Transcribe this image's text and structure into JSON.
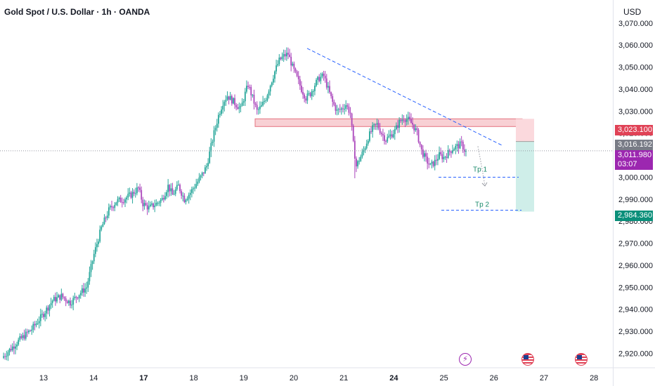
{
  "header": {
    "title": "Gold Spot / U.S. Dollar · 1h · OANDA"
  },
  "currency_label": "USD",
  "chart_data": {
    "type": "candlestick",
    "ylim": [
      2916,
      3076
    ],
    "y_ticks": [
      2920,
      2930,
      2940,
      2950,
      2960,
      2970,
      2980,
      2990,
      3000,
      3010,
      3020,
      3030,
      3040,
      3050,
      3060,
      3070
    ],
    "y_tick_labels": [
      "2,920.000",
      "2,930.000",
      "2,940.000",
      "2,950.000",
      "2,960.000",
      "2,970.000",
      "2,980.000",
      "2,990.000",
      "3,000.000",
      "3,010.000",
      "3,020.000",
      "3,030.000",
      "3,040.000",
      "3,050.000",
      "3,060.000",
      "3,070.000"
    ],
    "x_ticks": [
      {
        "label": "13",
        "bold": false
      },
      {
        "label": "14",
        "bold": false
      },
      {
        "label": "17",
        "bold": true
      },
      {
        "label": "18",
        "bold": false
      },
      {
        "label": "19",
        "bold": false
      },
      {
        "label": "20",
        "bold": false
      },
      {
        "label": "21",
        "bold": false
      },
      {
        "label": "24",
        "bold": true
      },
      {
        "label": "25",
        "bold": false
      },
      {
        "label": "26",
        "bold": false
      },
      {
        "label": "27",
        "bold": false
      },
      {
        "label": "28",
        "bold": false
      }
    ],
    "price_path": [
      [
        0,
        2918
      ],
      [
        10,
        2925
      ],
      [
        20,
        2931
      ],
      [
        28,
        2938
      ],
      [
        34,
        2944
      ],
      [
        40,
        2946
      ],
      [
        46,
        2943
      ],
      [
        52,
        2947
      ],
      [
        57,
        2950
      ],
      [
        62,
        2965
      ],
      [
        67,
        2977
      ],
      [
        72,
        2985
      ],
      [
        77,
        2989
      ],
      [
        82,
        2990
      ],
      [
        87,
        2992
      ],
      [
        92,
        2995
      ],
      [
        95,
        2988
      ],
      [
        99,
        2986
      ],
      [
        104,
        2988
      ],
      [
        108,
        2990
      ],
      [
        112,
        2996
      ],
      [
        115,
        2992
      ],
      [
        119,
        2996
      ],
      [
        123,
        2990
      ],
      [
        127,
        2993
      ],
      [
        131,
        2997
      ],
      [
        134,
        3000
      ],
      [
        138,
        3005
      ],
      [
        141,
        3014
      ],
      [
        143,
        3020
      ],
      [
        146,
        3028
      ],
      [
        149,
        3034
      ],
      [
        152,
        3037
      ],
      [
        155,
        3035
      ],
      [
        158,
        3033
      ],
      [
        161,
        3031
      ],
      [
        164,
        3038
      ],
      [
        166,
        3042
      ],
      [
        169,
        3036
      ],
      [
        172,
        3030
      ],
      [
        175,
        3032
      ],
      [
        178,
        3036
      ],
      [
        181,
        3042
      ],
      [
        184,
        3048
      ],
      [
        187,
        3053
      ],
      [
        190,
        3055
      ],
      [
        193,
        3056
      ],
      [
        196,
        3050
      ],
      [
        199,
        3045
      ],
      [
        202,
        3040
      ],
      [
        205,
        3036
      ],
      [
        208,
        3038
      ],
      [
        211,
        3042
      ],
      [
        214,
        3045
      ],
      [
        217,
        3046
      ],
      [
        220,
        3040
      ],
      [
        223,
        3034
      ],
      [
        226,
        3030
      ],
      [
        229,
        3031
      ],
      [
        232,
        3033
      ],
      [
        235,
        3029
      ],
      [
        237,
        3015
      ],
      [
        239,
        3005
      ],
      [
        241,
        3008
      ],
      [
        244,
        3012
      ],
      [
        247,
        3018
      ],
      [
        250,
        3022
      ],
      [
        253,
        3024
      ],
      [
        256,
        3020
      ],
      [
        259,
        3017
      ],
      [
        262,
        3019
      ],
      [
        265,
        3021
      ],
      [
        268,
        3025
      ],
      [
        271,
        3027
      ],
      [
        274,
        3026
      ],
      [
        277,
        3024
      ],
      [
        280,
        3020
      ],
      [
        283,
        3012
      ],
      [
        286,
        3008
      ],
      [
        289,
        3005
      ],
      [
        292,
        3007
      ],
      [
        295,
        3010
      ],
      [
        298,
        3009
      ],
      [
        301,
        3011
      ],
      [
        304,
        3013
      ],
      [
        307,
        3014
      ],
      [
        310,
        3015
      ],
      [
        313,
        3011
      ]
    ],
    "current_price": 3011.98,
    "current_price_label": "3,011.980",
    "countdown": "03:07",
    "price_tags": {
      "stop": "3,023.100",
      "entry": "3,016.192",
      "current": "3,011.980",
      "target": "2,984.360"
    },
    "resistance_zone": {
      "low": 3023,
      "high": 3026.5
    },
    "downtrend_line": {
      "from": 3058.5,
      "to": 3014.5
    },
    "short_position": {
      "stop": 3023.1,
      "entry": 3016.192,
      "target": 2984.36
    },
    "annotations": [
      "Tp 1",
      "Tp 2"
    ],
    "tp_levels": [
      3000,
      2985
    ],
    "colors": {
      "up": "#26a69a",
      "down": "#ab47bc",
      "trend": "#2962ff",
      "zone_fill": "#f8d0d4",
      "zone_border": "#e57380",
      "stop_fill": "#fbd9dd",
      "target_fill": "#cfeee9",
      "tp_text": "#1b8a6b"
    }
  },
  "events": {
    "bolt_icon": "lightning-icon",
    "flag_icon": "us-flag-icon"
  }
}
